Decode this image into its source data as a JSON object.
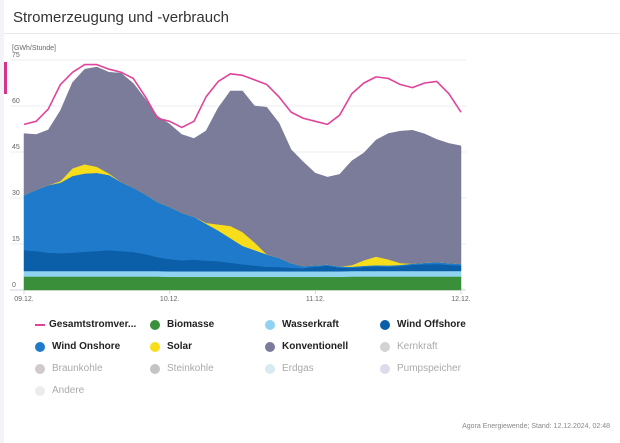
{
  "title": "Stromerzeugung und -verbrauch",
  "footer": "Agora Energiewende; Stand: 12.12.2024, 02:48",
  "chart_data": {
    "type": "area",
    "stacked": true,
    "ylabel": "[GWh/Stunde]",
    "ylim": [
      0,
      75
    ],
    "yticks": [
      0,
      15,
      30,
      45,
      60,
      75
    ],
    "xlim": [
      0,
      72
    ],
    "xticks": [
      {
        "x": 0,
        "label": "09.12."
      },
      {
        "x": 24,
        "label": "10.12."
      },
      {
        "x": 48,
        "label": "11.12."
      },
      {
        "x": 72,
        "label": "12.12."
      }
    ],
    "x": [
      0,
      2,
      4,
      6,
      8,
      10,
      12,
      14,
      16,
      18,
      20,
      22,
      24,
      26,
      28,
      30,
      32,
      34,
      36,
      38,
      40,
      42,
      44,
      46,
      48,
      50,
      52,
      54,
      56,
      58,
      60,
      62,
      64,
      66,
      68,
      70,
      72
    ],
    "series": [
      {
        "name": "Biomasse",
        "color": "#3a8f3a",
        "values": [
          4.4,
          4.4,
          4.4,
          4.4,
          4.4,
          4.4,
          4.4,
          4.4,
          4.4,
          4.4,
          4.4,
          4.4,
          4.3,
          4.3,
          4.3,
          4.3,
          4.3,
          4.3,
          4.3,
          4.3,
          4.3,
          4.3,
          4.3,
          4.3,
          4.3,
          4.3,
          4.3,
          4.4,
          4.4,
          4.4,
          4.4,
          4.4,
          4.4,
          4.4,
          4.4,
          4.4,
          4.4
        ]
      },
      {
        "name": "Wasserkraft",
        "color": "#8fd3f0",
        "values": [
          1.8,
          1.8,
          1.8,
          1.8,
          1.8,
          1.8,
          1.8,
          1.8,
          1.8,
          1.8,
          1.8,
          1.8,
          1.8,
          1.8,
          1.8,
          1.8,
          1.8,
          1.8,
          1.8,
          1.8,
          1.8,
          1.8,
          1.8,
          1.8,
          1.8,
          1.8,
          1.8,
          1.8,
          1.8,
          1.8,
          1.8,
          1.8,
          1.8,
          1.8,
          1.8,
          1.8,
          1.8
        ]
      },
      {
        "name": "Wind Offshore",
        "color": "#0b5ea8",
        "values": [
          6.8,
          6.5,
          6.0,
          5.8,
          6.0,
          6.3,
          6.5,
          6.8,
          6.5,
          6.2,
          5.5,
          4.5,
          4.0,
          3.6,
          3.8,
          3.5,
          3.3,
          2.8,
          2.3,
          1.9,
          1.5,
          1.4,
          1.2,
          1.0,
          1.5,
          1.8,
          1.2,
          1.0,
          1.3,
          1.5,
          1.4,
          1.6,
          2.0,
          2.2,
          2.3,
          2.0,
          1.8
        ]
      },
      {
        "name": "Wind Onshore",
        "color": "#1f7acc",
        "values": [
          18.0,
          20.0,
          22.0,
          23.0,
          25.0,
          25.5,
          25.5,
          24.5,
          22.5,
          21.0,
          19.5,
          18.0,
          17.0,
          15.5,
          14.0,
          12.0,
          10.0,
          8.0,
          6.0,
          5.0,
          4.0,
          3.0,
          1.5,
          0.7,
          0.5,
          0.4,
          0.4,
          0.4,
          0.4,
          0.4,
          0.4,
          0.4,
          0.4,
          0.5,
          0.6,
          0.6,
          0.5
        ]
      },
      {
        "name": "Solar",
        "color": "#f7dd1a",
        "values": [
          0,
          0,
          0,
          0.5,
          2.5,
          3.0,
          2.0,
          0.5,
          0,
          0,
          0,
          0,
          0,
          0,
          0,
          0.3,
          2.0,
          4.0,
          4.5,
          2.5,
          0,
          0,
          0,
          0,
          0,
          0,
          0,
          0.5,
          1.8,
          2.8,
          2.0,
          0.6,
          0,
          0,
          0,
          0,
          0
        ]
      },
      {
        "name": "Konventionell",
        "color": "#7b7b9a",
        "values": [
          20.0,
          18.0,
          18.0,
          23.0,
          28.0,
          31.0,
          32.5,
          33.0,
          35.5,
          34.0,
          31.0,
          28.0,
          27.0,
          25.5,
          25.5,
          30.0,
          38.0,
          44.0,
          46.0,
          44.5,
          48.0,
          44.0,
          37.0,
          34.0,
          30.0,
          28.5,
          30.0,
          34.0,
          35.0,
          38.0,
          41.0,
          43.0,
          43.5,
          42.0,
          40.0,
          39.0,
          38.5
        ]
      }
    ],
    "line_series": {
      "name": "Gesamtstromverbrauch",
      "color": "#e0449a",
      "values": [
        54.0,
        55.0,
        59.0,
        67.0,
        71.0,
        73.5,
        73.5,
        72.0,
        71.0,
        69.0,
        63.0,
        56.0,
        55.0,
        53.0,
        55.0,
        63.0,
        68.0,
        70.5,
        70.0,
        68.5,
        67.0,
        63.0,
        58.0,
        56.0,
        55.0,
        54.0,
        57.0,
        64.0,
        67.5,
        69.5,
        69.0,
        67.0,
        66.0,
        67.5,
        68.0,
        64.0,
        58.0
      ]
    }
  },
  "legend": [
    {
      "label": "Gesamtstromver...",
      "color": "#e0449a",
      "kind": "line",
      "active": true
    },
    {
      "label": "Biomasse",
      "color": "#3a8f3a",
      "kind": "dot",
      "active": true
    },
    {
      "label": "Wasserkraft",
      "color": "#8fd3f0",
      "kind": "dot",
      "active": true
    },
    {
      "label": "Wind Offshore",
      "color": "#0b5ea8",
      "kind": "dot",
      "active": true
    },
    {
      "label": "Wind Onshore",
      "color": "#1f7acc",
      "kind": "dot",
      "active": true
    },
    {
      "label": "Solar",
      "color": "#f7dd1a",
      "kind": "dot",
      "active": true
    },
    {
      "label": "Konventionell",
      "color": "#7b7b9a",
      "kind": "dot",
      "active": true
    },
    {
      "label": "Kernkraft",
      "color": "#d3d3d3",
      "kind": "dot",
      "active": false
    },
    {
      "label": "Braunkohle",
      "color": "#cfc9c9",
      "kind": "dot",
      "active": false
    },
    {
      "label": "Steinkohle",
      "color": "#c4c4c4",
      "kind": "dot",
      "active": false
    },
    {
      "label": "Erdgas",
      "color": "#d7eaf2",
      "kind": "dot",
      "active": false
    },
    {
      "label": "Pumpspeicher",
      "color": "#dcdcec",
      "kind": "dot",
      "active": false
    },
    {
      "label": "Andere",
      "color": "#ececec",
      "kind": "dot",
      "active": false
    }
  ]
}
